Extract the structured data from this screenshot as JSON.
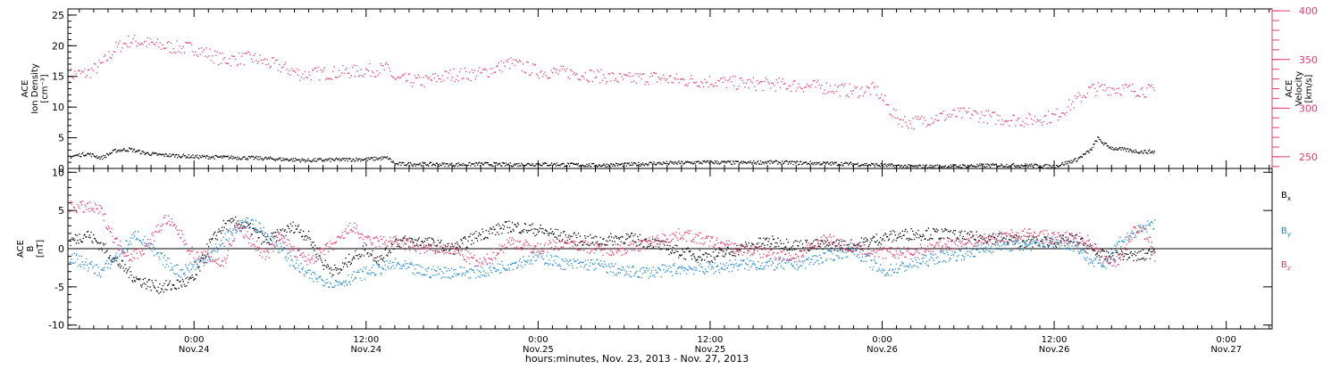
{
  "footer": {
    "xlabel": "hours:minutes, Nov. 23, 2013 - Nov. 27, 2013"
  },
  "x_ticks": [
    {
      "time": "0:00",
      "date": "Nov.24",
      "hours": 24
    },
    {
      "time": "12:00",
      "date": "Nov.24",
      "hours": 36
    },
    {
      "time": "0:00",
      "date": "Nov.25",
      "hours": 48
    },
    {
      "time": "12:00",
      "date": "Nov.25",
      "hours": 60
    },
    {
      "time": "0:00",
      "date": "Nov.26",
      "hours": 72
    },
    {
      "time": "12:00",
      "date": "Nov.26",
      "hours": 84
    },
    {
      "time": "0:00",
      "date": "Nov.27",
      "hours": 96
    }
  ],
  "colors": {
    "density": "#000000",
    "velocity": "#e8386a",
    "bx": "#000000",
    "by": "#1e88d8",
    "bz": "#e8386a",
    "axis": "#000000"
  },
  "chart_data": [
    {
      "type": "scatter",
      "panel": "top",
      "xlim_hours": [
        15.2,
        99.2
      ],
      "ylabel_left": [
        "ACE",
        "Ion Density",
        "[cm⁻³]"
      ],
      "ylabel_right": [
        "ACE",
        "Velocity",
        "[km/s]"
      ],
      "ylim_left": [
        0,
        26
      ],
      "yticks_left": [
        0,
        5,
        10,
        15,
        20,
        25
      ],
      "ylim_right": [
        238,
        402
      ],
      "yticks_right": [
        250,
        300,
        350,
        400
      ],
      "series": [
        {
          "axis": "left",
          "x": [
            15.3,
            16.5,
            17.5,
            18.5,
            19.5,
            20.5,
            21.5,
            22.5,
            24,
            26,
            28,
            30,
            32,
            34,
            36,
            37.5,
            38,
            40,
            42,
            44,
            46,
            48,
            50,
            52,
            54,
            56,
            58,
            60,
            62,
            64,
            66,
            68,
            70,
            72,
            74,
            76,
            78,
            80,
            82,
            84,
            85.5,
            86.5,
            87,
            87.5,
            88,
            89,
            90,
            91
          ],
          "y": [
            2.0,
            2.5,
            1.8,
            3.0,
            3.2,
            2.6,
            2.3,
            2.2,
            2.0,
            1.9,
            1.8,
            1.6,
            1.4,
            1.5,
            1.6,
            1.8,
            0.8,
            0.8,
            0.7,
            0.8,
            0.7,
            0.8,
            0.7,
            0.6,
            0.7,
            0.9,
            1.0,
            1.1,
            1.0,
            1.1,
            1.0,
            0.9,
            0.8,
            0.6,
            0.4,
            0.4,
            0.5,
            0.6,
            0.6,
            0.4,
            1.5,
            3.0,
            5.0,
            4.0,
            3.4,
            3.1,
            2.8,
            2.8
          ]
        },
        {
          "axis": "right",
          "x": [
            15.3,
            16.5,
            17.5,
            18.5,
            19.5,
            20.5,
            21.5,
            22.5,
            24,
            26,
            28,
            30,
            31.5,
            32.5,
            34,
            36,
            37.5,
            38,
            40,
            42,
            44,
            46,
            48,
            50,
            52,
            54,
            56,
            58,
            60,
            62,
            64,
            66,
            68,
            70,
            71.5,
            73,
            74,
            76,
            78,
            80,
            82,
            84,
            85.5,
            86.5,
            88,
            89,
            90,
            91
          ],
          "y": [
            335,
            336,
            345,
            362,
            370,
            368,
            365,
            363,
            362,
            350,
            352,
            343,
            335,
            336,
            337,
            339,
            341,
            330,
            328,
            335,
            336,
            347,
            338,
            337,
            334,
            330,
            332,
            329,
            328,
            326,
            325,
            324,
            322,
            318,
            320,
            290,
            285,
            292,
            295,
            290,
            288,
            292,
            308,
            320,
            321,
            320,
            319,
            318
          ]
        }
      ]
    },
    {
      "type": "scatter",
      "panel": "bottom",
      "xlim_hours": [
        15.2,
        99.2
      ],
      "ylabel_left": [
        "ACE",
        "B",
        "[nT]"
      ],
      "ylim": [
        -10.5,
        10.5
      ],
      "yticks": [
        -10,
        -5,
        0,
        5,
        10
      ],
      "series": [
        {
          "name": "Bx",
          "x": [
            15.3,
            16.5,
            17.5,
            18.5,
            20,
            21.5,
            22.5,
            24,
            25,
            26,
            27,
            28,
            29,
            30,
            31,
            32,
            33,
            34,
            35,
            36,
            37,
            38,
            40,
            42,
            44,
            46,
            48,
            50,
            52,
            54,
            56,
            58,
            60,
            62,
            64,
            66,
            68,
            70,
            72,
            74,
            76,
            78,
            80,
            82,
            84,
            85.5,
            86.5,
            87.5,
            88.5,
            89.5,
            90.5,
            91
          ],
          "y": [
            1.0,
            2.0,
            0.5,
            -1.5,
            -4.0,
            -5.0,
            -4.8,
            -4.0,
            0.5,
            3.0,
            3.5,
            2.5,
            1.0,
            2.0,
            3.0,
            1.5,
            -2.0,
            -3.0,
            -1.0,
            0.0,
            -1.5,
            1.0,
            1.0,
            0.0,
            2.0,
            3.0,
            2.5,
            1.5,
            1.0,
            1.5,
            0.8,
            -0.5,
            -1.0,
            0.0,
            1.0,
            0.5,
            0.5,
            0.5,
            1.5,
            2.0,
            2.0,
            1.5,
            1.5,
            1.0,
            1.0,
            1.2,
            0.0,
            -1.0,
            -0.5,
            -1.0,
            -0.8,
            0.3
          ]
        },
        {
          "name": "By",
          "x": [
            15.3,
            16.5,
            17.5,
            18.5,
            20,
            21.5,
            23,
            24,
            25,
            26,
            27,
            28,
            29,
            30,
            31,
            32,
            34,
            36,
            38,
            40,
            42,
            44,
            46,
            48,
            50,
            52,
            54,
            56,
            58,
            60,
            62,
            64,
            66,
            68,
            70,
            72,
            74,
            76,
            78,
            80,
            82,
            84,
            85.5,
            86.5,
            87.5,
            88.5,
            89.5,
            90.5,
            91
          ],
          "y": [
            -1.0,
            -2.0,
            -3.0,
            -1.0,
            2.0,
            -1.0,
            -3.0,
            -2.0,
            -1.0,
            1.0,
            3.0,
            3.5,
            2.0,
            0.0,
            -2.0,
            -3.5,
            -4.5,
            -3.0,
            -2.0,
            -3.0,
            -3.0,
            -3.0,
            -2.0,
            -1.0,
            -2.0,
            -2.0,
            -3.0,
            -3.0,
            -2.5,
            -2.5,
            -2.0,
            -2.0,
            -2.0,
            -1.0,
            0.0,
            -3.0,
            -2.0,
            -1.0,
            -0.5,
            0.5,
            0.5,
            1.0,
            0.5,
            -1.5,
            -2.0,
            1.0,
            2.0,
            3.0,
            3.5
          ]
        },
        {
          "name": "Bz",
          "x": [
            15.3,
            16.5,
            17.5,
            18.5,
            19.5,
            20.5,
            22,
            23,
            24,
            25,
            26,
            27,
            28,
            29,
            30,
            31,
            32,
            34,
            35,
            36,
            38,
            40,
            42,
            44,
            46,
            48,
            50,
            52,
            54,
            56,
            58,
            60,
            62,
            64,
            66,
            68,
            70,
            72,
            74,
            76,
            78,
            80,
            82,
            84,
            85.5,
            86.5,
            87.5,
            88.5,
            89.5,
            90.5,
            91
          ],
          "y": [
            5.5,
            5.5,
            5.0,
            1.0,
            -1.0,
            0.0,
            4.0,
            2.0,
            -1.0,
            -1.0,
            -2.0,
            3.0,
            1.0,
            -1.0,
            2.0,
            -0.5,
            -1.5,
            1.0,
            3.0,
            1.0,
            1.0,
            0.0,
            0.0,
            -2.0,
            1.0,
            0.0,
            1.0,
            0.0,
            0.0,
            1.0,
            2.0,
            1.0,
            0.0,
            -0.5,
            -1.0,
            1.5,
            0.0,
            -0.5,
            -0.5,
            0.5,
            1.0,
            1.5,
            2.0,
            1.5,
            1.5,
            1.0,
            -1.5,
            -1.5,
            2.5,
            2.0,
            -1.5
          ]
        }
      ]
    }
  ]
}
